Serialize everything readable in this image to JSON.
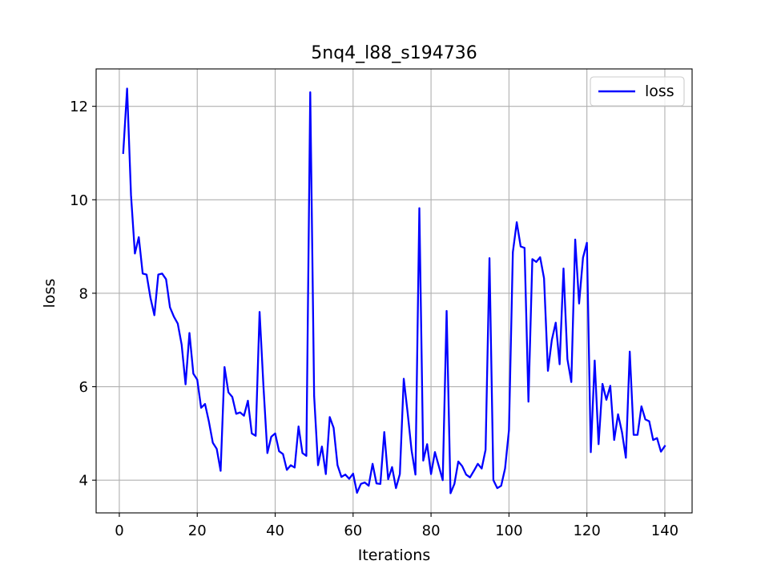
{
  "chart_data": {
    "type": "line",
    "title": "5nq4_l88_s194736",
    "xlabel": "Iterations",
    "ylabel": "loss",
    "xlim": [
      -5.95,
      147
    ],
    "ylim": [
      3.3,
      12.8
    ],
    "xticks": [
      0,
      20,
      40,
      60,
      80,
      100,
      120,
      140
    ],
    "yticks": [
      4,
      6,
      8,
      10,
      12
    ],
    "grid": true,
    "legend": "top-right",
    "series": [
      {
        "name": "loss",
        "color": "#0000ff",
        "x": [
          1,
          2,
          3,
          4,
          5,
          6,
          7,
          8,
          9,
          10,
          11,
          12,
          13,
          14,
          15,
          16,
          17,
          18,
          19,
          20,
          21,
          22,
          23,
          24,
          25,
          26,
          27,
          28,
          29,
          30,
          31,
          32,
          33,
          34,
          35,
          36,
          37,
          38,
          39,
          40,
          41,
          42,
          43,
          44,
          45,
          46,
          47,
          48,
          49,
          50,
          51,
          52,
          53,
          54,
          55,
          56,
          57,
          58,
          59,
          60,
          61,
          62,
          63,
          64,
          65,
          66,
          67,
          68,
          69,
          70,
          71,
          72,
          73,
          74,
          75,
          76,
          77,
          78,
          79,
          80,
          81,
          82,
          83,
          84,
          85,
          86,
          87,
          88,
          89,
          90,
          91,
          92,
          93,
          94,
          95,
          96,
          97,
          98,
          99,
          100,
          101,
          102,
          103,
          104,
          105,
          106,
          107,
          108,
          109,
          110,
          111,
          112,
          113,
          114,
          115,
          116,
          117,
          118,
          119,
          120,
          121,
          122,
          123,
          124,
          125,
          126,
          127,
          128,
          129,
          130,
          131,
          132,
          133,
          134,
          135,
          136,
          137,
          138,
          139,
          140
        ],
        "y": [
          11.0,
          12.38,
          10.1,
          8.85,
          9.2,
          8.42,
          8.4,
          7.9,
          7.53,
          8.4,
          8.42,
          8.3,
          7.7,
          7.5,
          7.35,
          6.9,
          6.05,
          7.15,
          6.28,
          6.15,
          5.55,
          5.63,
          5.25,
          4.8,
          4.67,
          4.2,
          6.42,
          5.88,
          5.78,
          5.42,
          5.45,
          5.38,
          5.7,
          5.0,
          4.95,
          7.6,
          6.0,
          4.58,
          4.93,
          5.0,
          4.62,
          4.56,
          4.22,
          4.32,
          4.27,
          5.15,
          4.58,
          4.52,
          12.3,
          5.8,
          4.32,
          4.72,
          4.13,
          5.35,
          5.12,
          4.32,
          4.07,
          4.12,
          4.03,
          4.14,
          3.73,
          3.92,
          3.95,
          3.88,
          4.35,
          3.93,
          3.92,
          5.03,
          4.02,
          4.28,
          3.83,
          4.13,
          6.17,
          5.44,
          4.64,
          4.12,
          9.82,
          4.42,
          4.77,
          4.13,
          4.6,
          4.3,
          4.0,
          7.62,
          3.72,
          3.92,
          4.4,
          4.3,
          4.12,
          4.06,
          4.2,
          4.35,
          4.25,
          4.65,
          8.75,
          4.0,
          3.83,
          3.88,
          4.25,
          5.07,
          8.88,
          9.52,
          9.0,
          8.97,
          5.68,
          8.73,
          8.67,
          8.77,
          8.32,
          6.34,
          7.0,
          7.37,
          6.48,
          8.53,
          6.59,
          6.1,
          9.15,
          7.78,
          8.76,
          9.08,
          4.6,
          6.56,
          4.77,
          6.06,
          5.72,
          6.02,
          4.86,
          5.41,
          5.03,
          4.48,
          6.75,
          4.97,
          4.97,
          5.58,
          5.3,
          5.26,
          4.86,
          4.9,
          4.61,
          4.73
        ]
      }
    ]
  }
}
